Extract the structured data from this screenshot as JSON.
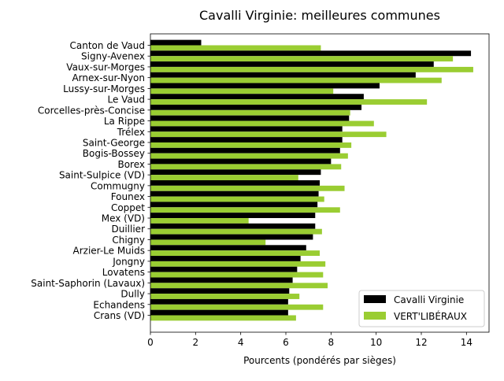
{
  "chart_data": {
    "type": "bar",
    "orientation": "horizontal",
    "title": "Cavalli Virginie: meilleures communes",
    "xlabel": "Pourcents (pondérés par sièges)",
    "ylabel": "",
    "xlim": [
      0,
      15
    ],
    "xticks": [
      "0",
      "2",
      "4",
      "6",
      "8",
      "10",
      "12",
      "14"
    ],
    "grid": false,
    "legend_position": "lower right",
    "categories": [
      "Canton de Vaud",
      "Signy-Avenex",
      "Vaux-sur-Morges",
      "Arnex-sur-Nyon",
      "Lussy-sur-Morges",
      "Le Vaud",
      "Corcelles-près-Concise",
      "La Rippe",
      "Trélex",
      "Saint-George",
      "Bogis-Bossey",
      "Borex",
      "Saint-Sulpice (VD)",
      "Commugny",
      "Founex",
      "Coppet",
      "Mex (VD)",
      "Duillier",
      "Chigny",
      "Arzier-Le Muids",
      "Jongny",
      "Lovatens",
      "Saint-Saphorin (Lavaux)",
      "Dully",
      "Echandens",
      "Crans (VD)"
    ],
    "series": [
      {
        "name": "Cavalli Virginie",
        "color": "#000000",
        "values": [
          2.25,
          14.2,
          12.55,
          11.75,
          10.15,
          9.45,
          9.35,
          8.8,
          8.5,
          8.5,
          8.4,
          8.0,
          7.55,
          7.5,
          7.45,
          7.4,
          7.3,
          7.3,
          7.2,
          6.9,
          6.65,
          6.5,
          6.3,
          6.15,
          6.1,
          6.1
        ]
      },
      {
        "name": "VERT'LIBÉRAUX",
        "color": "#9acd32",
        "values": [
          7.55,
          13.4,
          14.3,
          12.9,
          8.1,
          12.25,
          8.85,
          9.9,
          10.45,
          8.9,
          8.75,
          8.45,
          6.55,
          8.6,
          7.7,
          8.4,
          4.35,
          7.6,
          5.1,
          7.5,
          7.75,
          7.65,
          7.85,
          6.6,
          7.65,
          6.45
        ]
      }
    ]
  }
}
